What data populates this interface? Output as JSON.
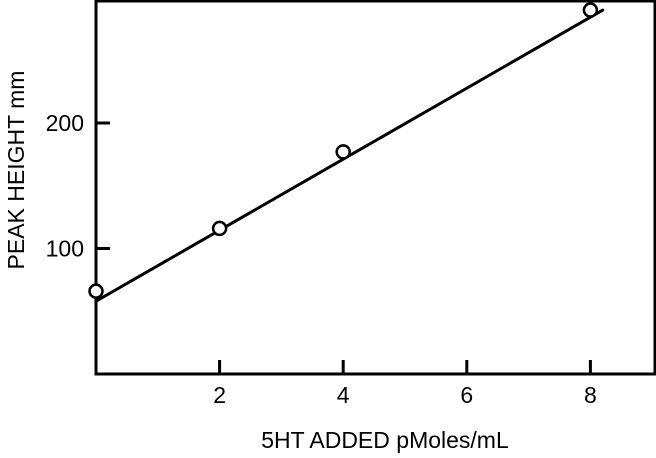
{
  "chart_data": {
    "type": "scatter",
    "title": "",
    "xlabel": "5HT ADDED pMoles/mL",
    "ylabel": "PEAK HEIGHT mm",
    "x_ticks": [
      2,
      4,
      6,
      8
    ],
    "y_ticks": [
      100,
      200
    ],
    "xlim": [
      0,
      9
    ],
    "ylim": [
      0,
      300
    ],
    "grid": false,
    "legend": "none",
    "series": [
      {
        "x": [
          0,
          2,
          4,
          8
        ],
        "y": [
          66,
          116,
          177,
          290
        ]
      }
    ],
    "fit_line": {
      "x": [
        0,
        8.2
      ],
      "y": [
        58,
        290
      ]
    }
  }
}
